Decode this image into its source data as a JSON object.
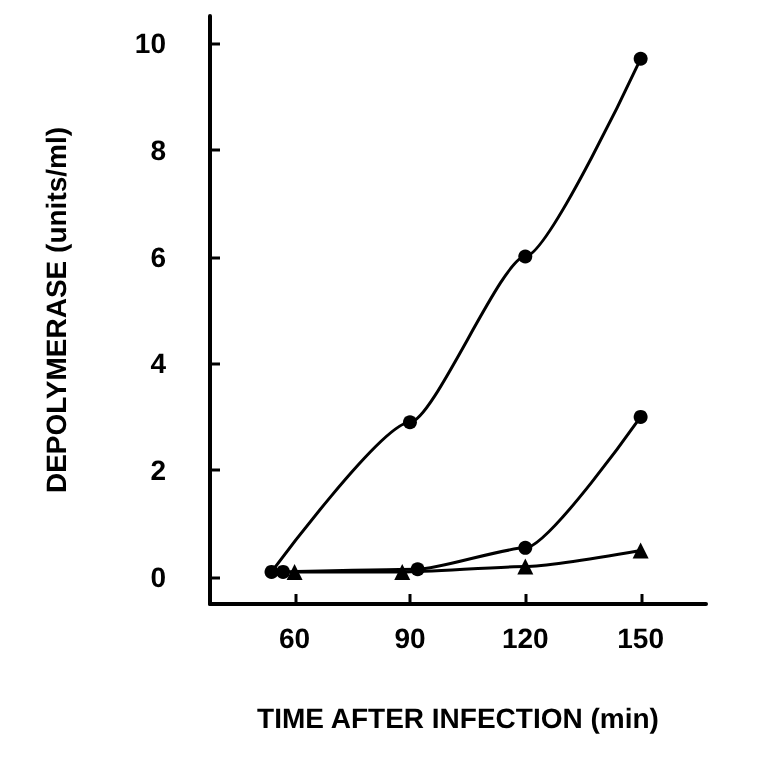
{
  "chart_data": {
    "type": "line",
    "xlabel": "TIME AFTER INFECTION (min)",
    "ylabel": "DEPOLYMERASE (units/ml)",
    "xlim": [
      38,
      167
    ],
    "xticks": [
      60,
      90,
      120,
      150
    ],
    "ylim": [
      -0.5,
      10.5
    ],
    "yticks": [
      0,
      2,
      4,
      6,
      8,
      10
    ],
    "grid": false,
    "line_style": "solid",
    "series": [
      {
        "color": "#000000",
        "marker": "circle",
        "x": [
          54,
          90,
          120,
          150
        ],
        "values": [
          0.1,
          2.9,
          6.0,
          9.7
        ]
      },
      {
        "color": "#000000",
        "marker": "circle",
        "x": [
          57,
          92,
          120,
          150
        ],
        "values": [
          0.1,
          0.15,
          0.55,
          3.0
        ]
      },
      {
        "color": "#000000",
        "marker": "triangle",
        "x": [
          60,
          88,
          120,
          150
        ],
        "values": [
          0.1,
          0.1,
          0.2,
          0.5
        ]
      }
    ]
  }
}
